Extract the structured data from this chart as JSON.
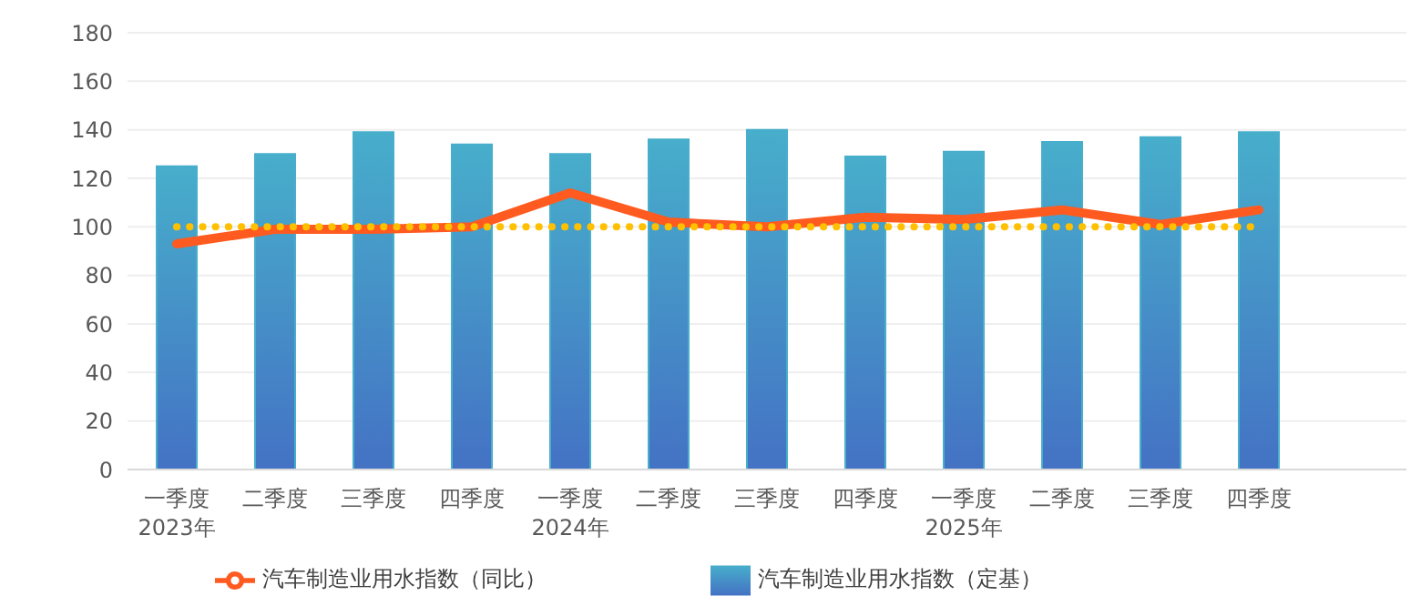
{
  "chart_data": {
    "type": "bar",
    "categories": [
      "一季度\n2023年",
      "二季度",
      "三季度",
      "四季度",
      "一季度\n2024年",
      "二季度",
      "三季度",
      "四季度",
      "一季度\n2025年",
      "二季度",
      "三季度",
      "四季度",
      null
    ],
    "series": [
      {
        "name": "汽车制造业用水指数（定基）",
        "color": "#47aecb",
        "values": [
          125,
          130,
          139,
          134,
          130,
          136,
          140,
          129,
          131,
          135,
          137,
          139,
          null
        ]
      },
      {
        "name": "汽车制造业用水指数（同比）",
        "type": "line",
        "color": "#ff5a1f",
        "values": [
          93,
          99,
          99,
          100,
          114,
          102,
          100,
          104,
          103,
          107,
          101,
          107,
          null
        ]
      }
    ],
    "ylim": [
      0,
      180
    ],
    "yticks": [
      0,
      20,
      40,
      60,
      80,
      100,
      120,
      140,
      160,
      180
    ],
    "ref_lines": [
      {
        "axis": "y",
        "value": 100,
        "color": "#ffc000",
        "line_style": "dotted"
      }
    ],
    "grid": "y",
    "legend": "bottom",
    "marker": "none",
    "line_style": "solid"
  }
}
